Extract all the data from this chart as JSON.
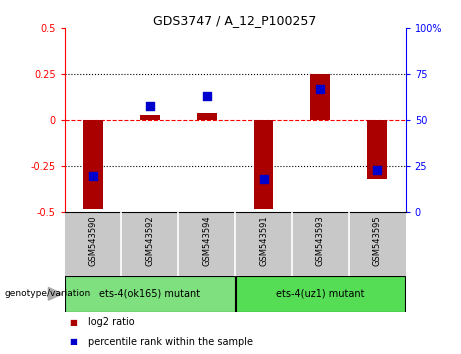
{
  "title": "GDS3747 / A_12_P100257",
  "samples": [
    "GSM543590",
    "GSM543592",
    "GSM543594",
    "GSM543591",
    "GSM543593",
    "GSM543595"
  ],
  "log2_ratio": [
    -0.48,
    0.03,
    0.04,
    -0.48,
    0.25,
    -0.32
  ],
  "percentile_rank": [
    20,
    58,
    63,
    18,
    67,
    23
  ],
  "groups": [
    {
      "label": "ets-4(ok165) mutant",
      "indices": [
        0,
        1,
        2
      ],
      "color": "#7EE07E"
    },
    {
      "label": "ets-4(uz1) mutant",
      "indices": [
        3,
        4,
        5
      ],
      "color": "#55DD55"
    }
  ],
  "ylim_left": [
    -0.5,
    0.5
  ],
  "ylim_right": [
    0,
    100
  ],
  "yticks_left": [
    -0.5,
    -0.25,
    0,
    0.25,
    0.5
  ],
  "yticks_right": [
    0,
    25,
    50,
    75,
    100
  ],
  "hlines_dotted": [
    0.25,
    -0.25
  ],
  "hline_dashed": 0.0,
  "bar_color": "#aa0000",
  "dot_color": "#0000cc",
  "bar_width": 0.35,
  "dot_size": 30,
  "background_color": "#ffffff",
  "plot_bg_color": "#ffffff",
  "legend_items": [
    "log2 ratio",
    "percentile rank within the sample"
  ],
  "legend_colors": [
    "#aa0000",
    "#0000cc"
  ],
  "genotype_label": "genotype/variation",
  "sample_bg": "#c8c8c8",
  "title_fontsize": 9,
  "tick_fontsize": 7,
  "label_fontsize": 6,
  "group_fontsize": 7,
  "legend_fontsize": 7
}
